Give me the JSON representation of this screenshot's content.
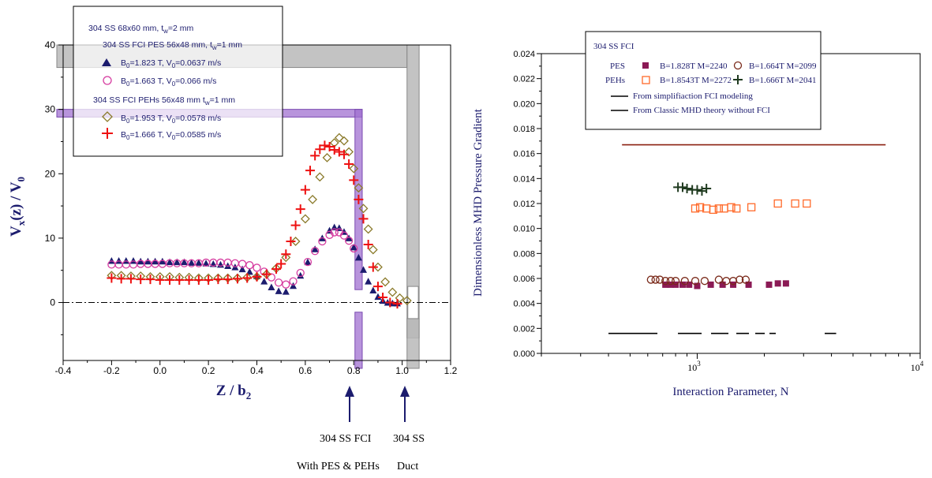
{
  "left": {
    "legend": {
      "line1": "304 SS 68x60 mm, t",
      "line1_sub": "w",
      "line1_end": "=2 mm",
      "line2": "304 SS FCI PES 56x48 mm, t",
      "line2_sub": "w",
      "line2_end": "=1 mm",
      "s1": "=1.823 T, V",
      "s1_end": "=0.0637 m/s",
      "s2": "=1.663 T, V",
      "s2_end": "=0.066 m/s",
      "line5": "304 SS FCI PEHs 56x48 mm t",
      "line5_sub": "w",
      "line5_end": "=1 mm",
      "s3": "=1.953 T, V",
      "s3_end": "=0.0578 m/s",
      "s4": "=1.666 T, V",
      "s4_end": "=0.0585 m/s",
      "B": "B",
      "sub0": "0"
    },
    "ylabel_parts": [
      "V",
      "x",
      "(z) / V",
      "0"
    ],
    "xlabel_parts": [
      "Z / b",
      "2"
    ],
    "annotations": {
      "fci_line1": "304 SS FCI",
      "fci_line2": "With PES & PEHs",
      "duct_line1": "304 SS",
      "duct_line2": "Duct"
    },
    "xticks": [
      "-0.4",
      "-0.2",
      "0.0",
      "0.2",
      "0.4",
      "0.6",
      "0.8",
      "1.0",
      "1.2"
    ],
    "yticks": [
      "0",
      "10",
      "20",
      "30",
      "40"
    ]
  },
  "right": {
    "legend": {
      "title": "304 SS FCI",
      "pes": "PES",
      "pehs": "PEHs",
      "s1": "B=1.828T  M=2240",
      "s2": "B=1.664T  M=2099",
      "s3": "B=1.8543T  M=2272",
      "s4": "B=1.666T  M=2041",
      "l1": "From simplifiaction FCI modeling",
      "l2": "From Classic MHD theory without FCI"
    },
    "ylabel": "Dimensionless MHD Pressure Gradient",
    "xlabel": "Interaction Parameter, N",
    "xticks": [
      "10",
      "10"
    ],
    "xtick_exps": [
      "3",
      "4"
    ],
    "yticks": [
      "0.000",
      "0.002",
      "0.004",
      "0.006",
      "0.008",
      "0.010",
      "0.012",
      "0.014",
      "0.016",
      "0.018",
      "0.020",
      "0.022",
      "0.024"
    ]
  },
  "colors": {
    "navy": "#1c1c6e",
    "magenta": "#d63ca0",
    "olive": "#8a7a2a",
    "red": "#ee1111",
    "maroon": "#8b1a55",
    "brown": "#7a2a1a",
    "orange": "#ff6a2a",
    "darkgreen": "#1f3a1f",
    "purple_band": "#a070d0",
    "gray_band": "#b8b8b8",
    "classic_line": "#8b2010"
  },
  "chart_data": [
    {
      "type": "scatter",
      "xlabel": "Z / b2",
      "ylabel": "Vx(z) / V0",
      "xlim": [
        -0.4,
        1.2
      ],
      "ylim": [
        -9,
        40
      ],
      "grid": false,
      "legend_position": "top-left",
      "reference_line_y": 0,
      "bands": {
        "fci_wall_x": [
          0.805,
          0.835
        ],
        "duct_wall_x": [
          1.02,
          1.07
        ],
        "horizontal_purple_y": [
          28.8,
          30.0
        ],
        "horizontal_gray_y": [
          36.5,
          40.0
        ]
      },
      "series": [
        {
          "name": "B0=1.823 T, V0=0.0637 m/s",
          "marker": "filled-triangle",
          "x": [
            -0.2,
            -0.17,
            -0.14,
            -0.11,
            -0.08,
            -0.05,
            -0.02,
            0.01,
            0.04,
            0.07,
            0.1,
            0.13,
            0.16,
            0.19,
            0.22,
            0.25,
            0.28,
            0.31,
            0.34,
            0.37,
            0.4,
            0.43,
            0.46,
            0.49,
            0.52,
            0.55,
            0.58,
            0.61,
            0.64,
            0.67,
            0.7,
            0.72,
            0.74,
            0.76,
            0.78,
            0.8,
            0.82,
            0.84,
            0.86,
            0.88,
            0.9,
            0.92,
            0.94,
            0.96,
            0.98
          ],
          "y": [
            6.5,
            6.5,
            6.5,
            6.5,
            6.4,
            6.4,
            6.4,
            6.4,
            6.3,
            6.3,
            6.3,
            6.2,
            6.2,
            6.1,
            6.0,
            5.9,
            5.7,
            5.5,
            5.2,
            4.8,
            4.1,
            3.3,
            2.4,
            1.8,
            1.7,
            2.6,
            4.2,
            6.3,
            8.3,
            10.0,
            11.2,
            11.7,
            11.6,
            11.0,
            10.0,
            8.6,
            7.0,
            5.1,
            3.3,
            1.9,
            0.9,
            0.3,
            0.0,
            -0.1,
            -0.1
          ]
        },
        {
          "name": "B0=1.663 T, V0=0.066 m/s",
          "marker": "open-circle",
          "x": [
            -0.2,
            -0.17,
            -0.14,
            -0.11,
            -0.08,
            -0.05,
            -0.02,
            0.01,
            0.04,
            0.07,
            0.1,
            0.13,
            0.16,
            0.19,
            0.22,
            0.25,
            0.28,
            0.31,
            0.34,
            0.37,
            0.4,
            0.43,
            0.46,
            0.49,
            0.52,
            0.55,
            0.58,
            0.61,
            0.64,
            0.67,
            0.7,
            0.72,
            0.74,
            0.76,
            0.78,
            0.8
          ],
          "y": [
            5.9,
            5.9,
            5.9,
            5.9,
            6.0,
            6.0,
            6.0,
            6.0,
            6.1,
            6.1,
            6.1,
            6.1,
            6.1,
            6.2,
            6.2,
            6.2,
            6.2,
            6.1,
            6.0,
            5.8,
            5.4,
            4.8,
            3.9,
            3.1,
            2.8,
            3.3,
            4.6,
            6.3,
            8.0,
            9.5,
            10.5,
            10.9,
            10.9,
            10.4,
            9.6,
            8.4
          ]
        },
        {
          "name": "B0=1.953 T, V0=0.0578 m/s",
          "marker": "open-diamond",
          "x": [
            -0.2,
            -0.16,
            -0.12,
            -0.08,
            -0.04,
            0.0,
            0.04,
            0.08,
            0.12,
            0.16,
            0.2,
            0.24,
            0.28,
            0.32,
            0.36,
            0.4,
            0.44,
            0.48,
            0.52,
            0.56,
            0.6,
            0.63,
            0.66,
            0.69,
            0.72,
            0.74,
            0.76,
            0.78,
            0.8,
            0.82,
            0.84,
            0.86,
            0.88,
            0.9,
            0.93,
            0.96,
            0.99,
            1.02
          ],
          "y": [
            4.2,
            4.2,
            4.1,
            4.1,
            4.0,
            4.0,
            4.0,
            3.9,
            3.9,
            3.8,
            3.8,
            3.8,
            3.8,
            3.8,
            3.9,
            4.0,
            4.4,
            5.3,
            7.0,
            9.5,
            13.0,
            16.0,
            19.5,
            22.5,
            24.8,
            25.6,
            25.1,
            23.4,
            20.8,
            17.8,
            14.6,
            11.4,
            8.2,
            5.5,
            3.2,
            1.6,
            0.7,
            0.3
          ]
        },
        {
          "name": "B0=1.666 T, V0=0.0585 m/s",
          "marker": "plus",
          "x": [
            -0.2,
            -0.16,
            -0.12,
            -0.08,
            -0.04,
            0.0,
            0.04,
            0.08,
            0.12,
            0.16,
            0.2,
            0.24,
            0.28,
            0.32,
            0.36,
            0.4,
            0.44,
            0.48,
            0.5,
            0.52,
            0.54,
            0.56,
            0.58,
            0.6,
            0.62,
            0.64,
            0.66,
            0.68,
            0.7,
            0.72,
            0.74,
            0.76,
            0.78,
            0.8,
            0.82,
            0.84,
            0.86,
            0.88,
            0.9,
            0.92,
            0.95,
            0.98
          ],
          "y": [
            3.8,
            3.7,
            3.7,
            3.6,
            3.6,
            3.5,
            3.5,
            3.5,
            3.5,
            3.5,
            3.5,
            3.6,
            3.6,
            3.7,
            3.8,
            4.0,
            4.4,
            5.2,
            6.0,
            7.5,
            9.5,
            12.0,
            14.5,
            17.5,
            20.5,
            22.8,
            23.8,
            24.4,
            24.2,
            23.7,
            23.4,
            23.0,
            21.5,
            19.0,
            16.0,
            13.0,
            9.0,
            5.5,
            2.5,
            0.8,
            0.0,
            -0.2
          ]
        }
      ]
    },
    {
      "type": "scatter",
      "xlabel": "Interaction Parameter, N",
      "ylabel": "Dimensionless MHD Pressure Gradient",
      "x_scale": "log",
      "xlim": [
        200,
        10000
      ],
      "ylim": [
        0,
        0.024
      ],
      "grid": false,
      "legend_position": "top",
      "series": [
        {
          "name": "PES B=1.828T M=2240",
          "marker": "filled-square",
          "x": [
            720,
            760,
            800,
            860,
            920,
            1000,
            1150,
            1300,
            1450,
            1700,
            2100,
            2300,
            2500
          ],
          "y": [
            0.0055,
            0.0055,
            0.0055,
            0.0055,
            0.0055,
            0.0054,
            0.0055,
            0.0055,
            0.0055,
            0.0055,
            0.0055,
            0.0056,
            0.0056
          ]
        },
        {
          "name": "PES B=1.664T M=2099",
          "marker": "open-circle",
          "x": [
            620,
            650,
            680,
            720,
            760,
            800,
            880,
            980,
            1080,
            1250,
            1350,
            1450,
            1550,
            1650
          ],
          "y": [
            0.0059,
            0.0059,
            0.0059,
            0.0058,
            0.0058,
            0.0058,
            0.0058,
            0.0058,
            0.0058,
            0.0059,
            0.0058,
            0.0058,
            0.0059,
            0.0059
          ]
        },
        {
          "name": "PEHs B=1.8543T M=2272",
          "marker": "open-square",
          "x": [
            980,
            1030,
            1100,
            1180,
            1250,
            1320,
            1420,
            1500,
            1750,
            2300,
            2750,
            3100
          ],
          "y": [
            0.0116,
            0.0117,
            0.0116,
            0.0115,
            0.0116,
            0.0116,
            0.0117,
            0.0116,
            0.0117,
            0.012,
            0.012,
            0.012
          ]
        },
        {
          "name": "PEHs B=1.666T M=2041",
          "marker": "plus",
          "x": [
            820,
            860,
            900,
            950,
            1000,
            1050,
            1100
          ],
          "y": [
            0.0133,
            0.0133,
            0.0132,
            0.0131,
            0.0131,
            0.013,
            0.0132
          ]
        },
        {
          "name": "From simplifiaction FCI modeling",
          "marker": "dashed-line",
          "x": [
            400,
            4200
          ],
          "y": [
            0.0016,
            0.0016
          ]
        },
        {
          "name": "From Classic MHD theory without FCI",
          "marker": "line",
          "x": [
            460,
            7000
          ],
          "y": [
            0.0167,
            0.0167
          ]
        }
      ]
    }
  ]
}
